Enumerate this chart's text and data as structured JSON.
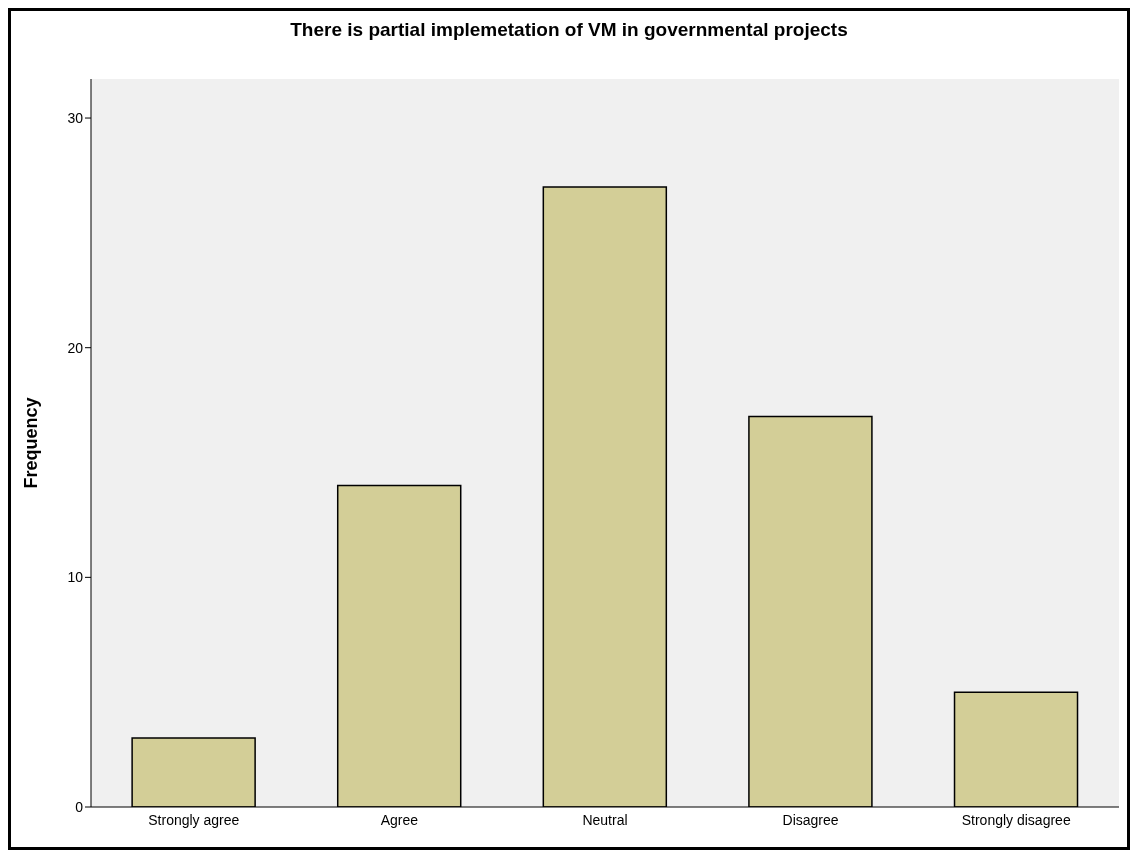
{
  "chart_data": {
    "type": "bar",
    "title": "There is partial implemetation of VM in governmental projects",
    "ylabel": "Frequency",
    "categories": [
      "Strongly agree",
      "Agree",
      "Neutral",
      "Disagree",
      "Strongly disagree"
    ],
    "values": [
      3,
      14,
      27,
      17,
      5
    ],
    "color": "#d3ce97",
    "ylim": [
      0,
      31.7
    ],
    "yticks": [
      0,
      10,
      20,
      30
    ],
    "grid": false
  }
}
